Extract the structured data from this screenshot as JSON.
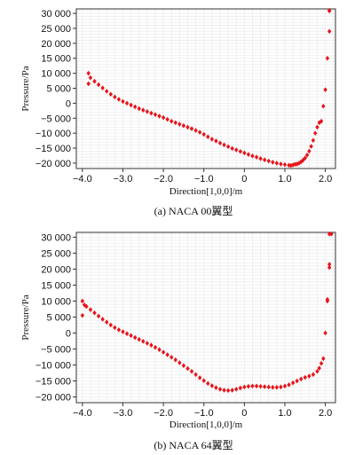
{
  "chart_data": [
    {
      "type": "scatter",
      "xlabel": "Direction[1,0,0]/m",
      "ylabel": "Pressure/Pa",
      "caption": "(a) NACA 00翼型",
      "xlim": [
        -4.15,
        2.25
      ],
      "ylim": [
        -21800,
        31500
      ],
      "xticks": [
        -4.0,
        -3.0,
        -2.0,
        -1.0,
        0,
        1.0,
        2.0
      ],
      "xtick_labels": [
        "−4.0",
        "−3.0",
        "−2.0",
        "−1.0",
        "0",
        "1.0",
        "2.0"
      ],
      "yticks": [
        30000,
        25000,
        20000,
        15000,
        10000,
        5000,
        0,
        -5000,
        -10000,
        -15000,
        -20000
      ],
      "ytick_labels": [
        "30 000",
        "25 000",
        "20 000",
        "15 000",
        "10 000",
        "5 000",
        "0",
        "−5 000",
        "−10 000",
        "−15 000",
        "−20 000"
      ],
      "grid": true,
      "color": "#e8141b",
      "series": [
        {
          "x": [
            -3.85,
            -3.85,
            -3.8,
            -3.7,
            -3.6,
            -3.5,
            -3.4,
            -3.3,
            -3.2,
            -3.1,
            -3.0,
            -2.9,
            -2.8,
            -2.7,
            -2.6,
            -2.5,
            -2.4,
            -2.3,
            -2.2,
            -2.1,
            -2.0,
            -1.9,
            -1.8,
            -1.7,
            -1.6,
            -1.5,
            -1.4,
            -1.3,
            -1.2,
            -1.1,
            -1.0,
            -0.9,
            -0.8,
            -0.7,
            -0.6,
            -0.5,
            -0.4,
            -0.3,
            -0.2,
            -0.1,
            0.0,
            0.1,
            0.2,
            0.3,
            0.4,
            0.5,
            0.6,
            0.7,
            0.8,
            0.9,
            1.0,
            1.1,
            1.15,
            1.2,
            1.25,
            1.3,
            1.35,
            1.4,
            1.45,
            1.5,
            1.55,
            1.6,
            1.65,
            1.7,
            1.75,
            1.8,
            1.85,
            1.9,
            1.95,
            2.0,
            2.05,
            2.1,
            2.1,
            2.1
          ],
          "y": [
            6500,
            10000,
            8500,
            7300,
            6200,
            5100,
            4000,
            3000,
            2100,
            1300,
            600,
            0,
            -600,
            -1200,
            -1800,
            -2300,
            -2800,
            -3300,
            -3800,
            -4300,
            -4800,
            -5400,
            -6000,
            -6500,
            -7000,
            -7500,
            -8000,
            -8500,
            -9100,
            -9700,
            -10400,
            -11200,
            -12000,
            -12600,
            -13300,
            -13900,
            -14500,
            -15100,
            -15600,
            -16100,
            -16600,
            -17100,
            -17600,
            -18000,
            -18500,
            -18900,
            -19300,
            -19700,
            -20000,
            -20300,
            -20500,
            -20700,
            -20800,
            -20600,
            -20400,
            -20300,
            -20000,
            -19600,
            -19000,
            -18300,
            -17300,
            -16000,
            -14400,
            -12400,
            -10000,
            -8000,
            -6500,
            -6000,
            -1000,
            4500,
            15000,
            24000,
            30800,
            31000
          ]
        }
      ]
    },
    {
      "type": "scatter",
      "xlabel": "Direction[1,0,0]/m",
      "ylabel": "Pressure/Pa",
      "caption": "(b) NACA 64翼型",
      "xlim": [
        -4.15,
        2.25
      ],
      "ylim": [
        -21800,
        31500
      ],
      "xticks": [
        -4.0,
        -3.0,
        -2.0,
        -1.0,
        0,
        1.0,
        2.0
      ],
      "xtick_labels": [
        "−4.0",
        "−3.0",
        "−2.0",
        "−1.0",
        "0",
        "1.0",
        "2.0"
      ],
      "yticks": [
        30000,
        25000,
        20000,
        15000,
        10000,
        5000,
        0,
        -5000,
        -10000,
        -15000,
        -20000
      ],
      "ytick_labels": [
        "30 000",
        "25 000",
        "20 000",
        "15 000",
        "10 000",
        "5 000",
        "0",
        "−5 000",
        "−10 000",
        "−15 000",
        "−20 000"
      ],
      "grid": true,
      "color": "#e8141b",
      "series": [
        {
          "x": [
            -4.0,
            -4.0,
            -3.95,
            -3.9,
            -3.8,
            -3.7,
            -3.6,
            -3.5,
            -3.4,
            -3.3,
            -3.2,
            -3.1,
            -3.0,
            -2.9,
            -2.8,
            -2.7,
            -2.6,
            -2.5,
            -2.4,
            -2.3,
            -2.2,
            -2.1,
            -2.0,
            -1.9,
            -1.8,
            -1.7,
            -1.6,
            -1.5,
            -1.4,
            -1.3,
            -1.2,
            -1.1,
            -1.0,
            -0.9,
            -0.8,
            -0.7,
            -0.6,
            -0.5,
            -0.4,
            -0.3,
            -0.2,
            -0.1,
            0.0,
            0.1,
            0.2,
            0.3,
            0.4,
            0.5,
            0.6,
            0.7,
            0.8,
            0.9,
            1.0,
            1.1,
            1.2,
            1.3,
            1.4,
            1.5,
            1.6,
            1.7,
            1.8,
            1.85,
            1.9,
            1.95,
            2.0,
            2.05,
            2.05,
            2.1,
            2.1,
            2.1,
            2.15
          ],
          "y": [
            5500,
            10000,
            8800,
            8300,
            7300,
            6300,
            5300,
            4300,
            3400,
            2500,
            1700,
            1000,
            400,
            -200,
            -800,
            -1400,
            -2000,
            -2600,
            -3200,
            -3800,
            -4500,
            -5200,
            -6000,
            -6800,
            -7600,
            -8400,
            -9300,
            -10200,
            -11100,
            -12000,
            -13000,
            -14000,
            -14900,
            -15800,
            -16500,
            -17100,
            -17600,
            -17900,
            -18000,
            -17900,
            -17600,
            -17200,
            -16900,
            -16700,
            -16600,
            -16600,
            -16700,
            -16800,
            -16900,
            -17000,
            -17000,
            -16900,
            -16600,
            -16200,
            -15600,
            -15000,
            -14400,
            -13900,
            -13500,
            -13000,
            -12000,
            -11000,
            -9500,
            -8000,
            0,
            10000,
            10500,
            20500,
            21500,
            31000,
            31000
          ]
        }
      ]
    }
  ]
}
